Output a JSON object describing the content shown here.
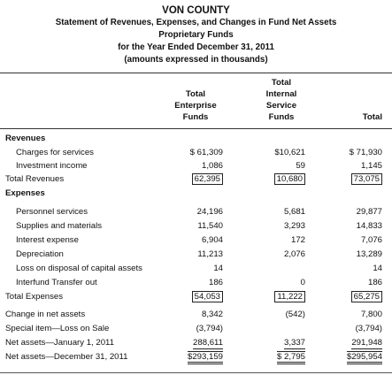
{
  "header": {
    "entity": "VON COUNTY",
    "statement": "Statement of Revenues, Expenses, and Changes in Fund Net Assets",
    "fund_type": "Proprietary Funds",
    "period": "for the Year Ended December 31, 2011",
    "units": "(amounts expressed in thousands)"
  },
  "columns": {
    "enterprise": [
      "Total",
      "Enterprise",
      "Funds"
    ],
    "internal": [
      "Total",
      "Internal",
      "Service",
      "Funds"
    ],
    "total": "Total"
  },
  "sections": {
    "revenues": "Revenues",
    "expenses": "Expenses"
  },
  "rows": {
    "charges": {
      "label": "Charges for services",
      "enterprise": "$ 61,309",
      "internal": "$10,621",
      "total": "$ 71,930"
    },
    "investment": {
      "label": "Investment income",
      "enterprise": "1,086",
      "internal": "59",
      "total": "1,145"
    },
    "total_revenues": {
      "label": "Total Revenues",
      "enterprise": "62,395",
      "internal": "10,680",
      "total": "73,075"
    },
    "personnel": {
      "label": "Personnel services",
      "enterprise": "24,196",
      "internal": "5,681",
      "total": "29,877"
    },
    "supplies": {
      "label": "Supplies and materials",
      "enterprise": "11,540",
      "internal": "3,293",
      "total": "14,833"
    },
    "interest": {
      "label": "Interest expense",
      "enterprise": "6,904",
      "internal": "172",
      "total": "7,076"
    },
    "depreciation": {
      "label": "Depreciation",
      "enterprise": "11,213",
      "internal": "2,076",
      "total": "13,289"
    },
    "loss_disposal": {
      "label": "Loss on disposal of capital assets",
      "enterprise": "14",
      "internal": "",
      "total": "14"
    },
    "transfer_out": {
      "label": "Interfund Transfer out",
      "enterprise": "186",
      "internal": "0",
      "total": "186"
    },
    "total_expenses": {
      "label": "Total Expenses",
      "enterprise": "54,053",
      "internal": "11,222",
      "total": "65,275"
    },
    "change": {
      "label": "Change in net assets",
      "enterprise": "8,342",
      "internal": "(542)",
      "total": "7,800"
    },
    "special": {
      "label": "Special item—Loss on Sale",
      "enterprise": "(3,794)",
      "internal": "",
      "total": "(3,794)"
    },
    "net_begin": {
      "label": "Net assets—January 1, 2011",
      "enterprise": "288,611",
      "internal": "3,337",
      "total": "291,948"
    },
    "net_end": {
      "label": "Net assets—December 31, 2011",
      "enterprise": "$293,159",
      "internal": "$ 2,795",
      "total": "$295,954"
    }
  }
}
